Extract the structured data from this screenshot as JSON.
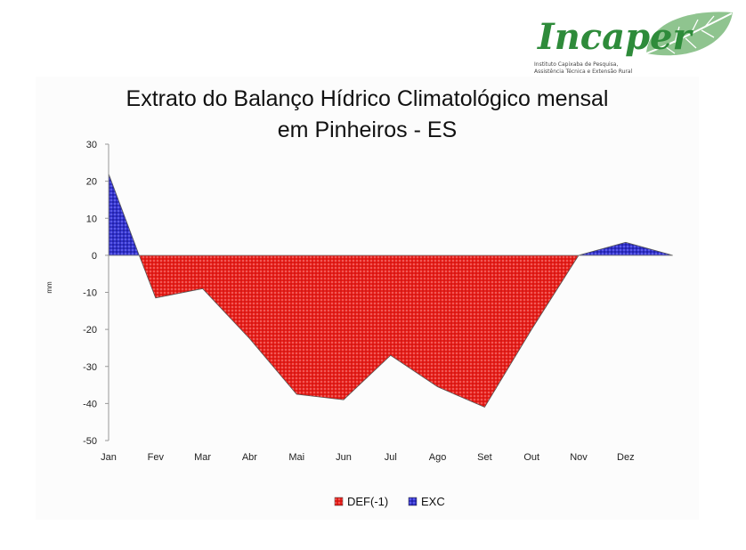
{
  "logo": {
    "name": "Incaper",
    "line1": "Instituto Capixaba de Pesquisa,",
    "line2": "Assistência Técnica e Extensão Rural"
  },
  "chart_data": {
    "type": "area",
    "title": "Extrato do Balanço Hídrico Climatológico mensal",
    "subtitle": "em Pinheiros - ES",
    "ylabel": "mm",
    "xlabel": "",
    "ylim": [
      -50,
      30
    ],
    "yticks": [
      30,
      20,
      10,
      0,
      -10,
      -20,
      -30,
      -40,
      -50
    ],
    "categories": [
      "Jan",
      "Fev",
      "Mar",
      "Abr",
      "Mai",
      "Jun",
      "Jul",
      "Ago",
      "Set",
      "Out",
      "Nov",
      "Dez"
    ],
    "x_end_label": "",
    "legend_position": "bottom",
    "grid": false,
    "series": [
      {
        "name": "DEF(-1)",
        "color": "#e8201c",
        "points": [
          {
            "x": 0.0,
            "y": 0
          },
          {
            "x": 0.65,
            "y": 0
          },
          {
            "x": 1.0,
            "y": -11.5
          },
          {
            "x": 2.0,
            "y": -9.0
          },
          {
            "x": 3.0,
            "y": -22.5
          },
          {
            "x": 4.0,
            "y": -37.5
          },
          {
            "x": 5.0,
            "y": -39.0
          },
          {
            "x": 6.0,
            "y": -27.0
          },
          {
            "x": 7.0,
            "y": -35.5
          },
          {
            "x": 8.0,
            "y": -41.0
          },
          {
            "x": 9.0,
            "y": -20.0
          },
          {
            "x": 10.0,
            "y": 0
          },
          {
            "x": 11.0,
            "y": 0
          },
          {
            "x": 12.0,
            "y": 0
          }
        ]
      },
      {
        "name": "EXC",
        "color": "#3333cc",
        "points": [
          {
            "x": 0.0,
            "y": 22.0
          },
          {
            "x": 0.65,
            "y": 0
          },
          {
            "x": 1.0,
            "y": 0
          },
          {
            "x": 10.0,
            "y": 0
          },
          {
            "x": 11.0,
            "y": 3.5
          },
          {
            "x": 12.0,
            "y": 0
          }
        ]
      }
    ]
  }
}
